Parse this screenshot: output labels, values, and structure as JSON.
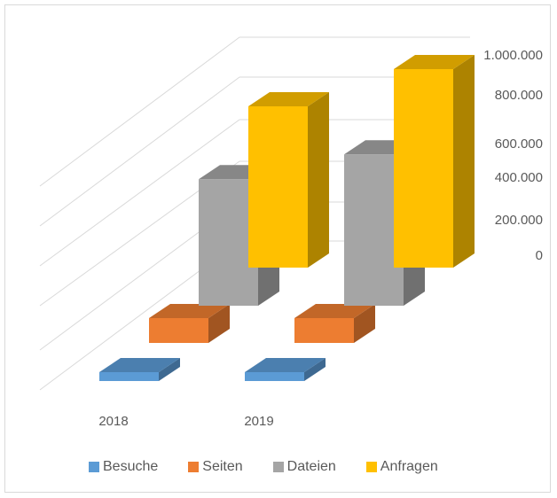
{
  "chart_data": {
    "type": "bar",
    "subtype": "3d-clustered-column",
    "categories": [
      "2018",
      "2019"
    ],
    "series": [
      {
        "name": "Besuche",
        "values": [
          20000,
          20000
        ],
        "color": "#5b9bd5"
      },
      {
        "name": "Seiten",
        "values": [
          100000,
          100000
        ],
        "color": "#ed7d31"
      },
      {
        "name": "Dateien",
        "values": [
          510000,
          610000
        ],
        "color": "#a5a5a5"
      },
      {
        "name": "Anfragen",
        "values": [
          650000,
          800000
        ],
        "color": "#ffc000"
      }
    ],
    "yticks": [
      "1.000.000",
      "800.000",
      "600.000",
      "400.000",
      "200.000",
      "0"
    ],
    "ylim": [
      0,
      1000000
    ],
    "grid": true,
    "legend_position": "bottom"
  }
}
